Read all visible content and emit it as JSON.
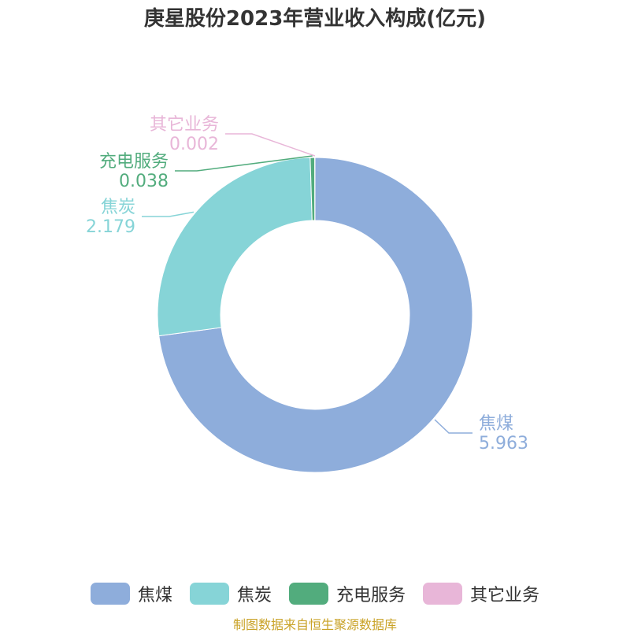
{
  "title": "庚星股份2023年营业收入构成(亿元)",
  "source": "制图数据来自恒生聚源数据库",
  "chart_data": {
    "type": "pie",
    "variant": "donut",
    "title": "庚星股份2023年营业收入构成(亿元)",
    "unit": "亿元",
    "legend_position": "bottom",
    "slices": [
      {
        "name": "焦煤",
        "value": 5.963,
        "label": "5.963",
        "color": "#8EADDB"
      },
      {
        "name": "焦炭",
        "value": 2.179,
        "label": "2.179",
        "color": "#86D4D7"
      },
      {
        "name": "充电服务",
        "value": 0.038,
        "label": "0.038",
        "color": "#52AC7D"
      },
      {
        "name": "其它业务",
        "value": 0.002,
        "label": "0.002",
        "color": "#E8B6D8"
      }
    ]
  }
}
